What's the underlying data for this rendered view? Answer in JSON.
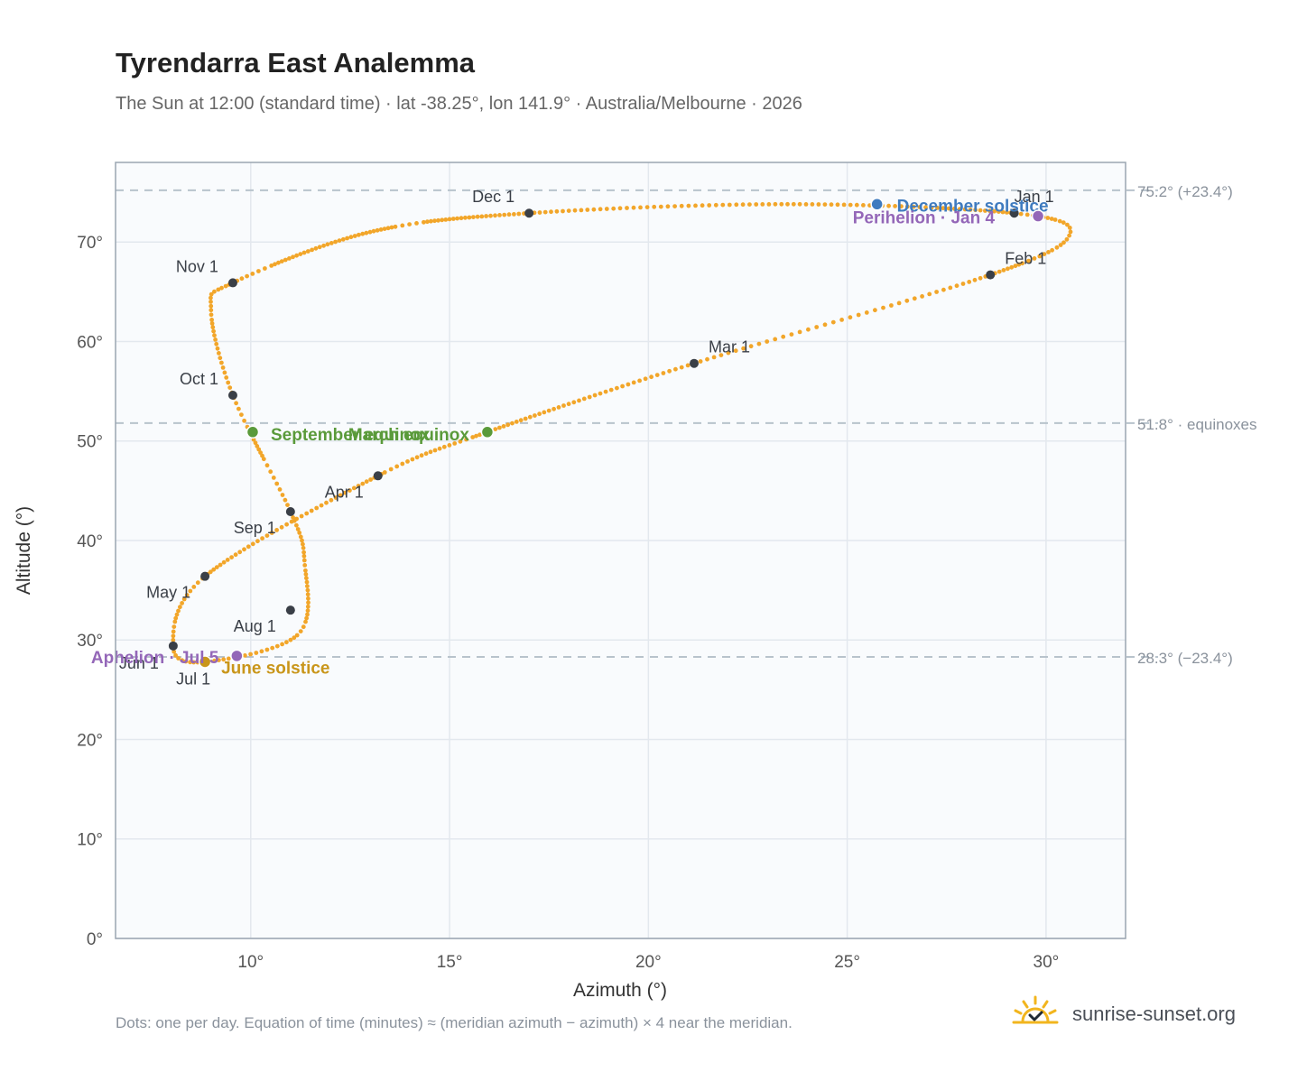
{
  "header": {
    "title": "Tyrendarra East Analemma",
    "subtitle": "The Sun at 12:00 (standard time) · lat -38.25°, lon 141.9° · Australia/Melbourne · 2026"
  },
  "footer": {
    "note": "Dots: one per day. Equation of time (minutes) ≈ (meridian azimuth − azimuth) × 4 near the meridian.",
    "brand": "sunrise-sunset.org",
    "brand_icon": "sun-check-icon"
  },
  "colors": {
    "path": "#f2a62a",
    "month_dot": "#3a3f47",
    "solstice_june": "#c9961a",
    "solstice_december": "#3f7bbf",
    "equinox": "#5a9a3a",
    "apsis": "#9467b8",
    "reference_line": "#b8c3cc",
    "grid": "#e3e8ee",
    "plot_background": "#f9fbfd",
    "frame": "#9aa5b1"
  },
  "chart_data": {
    "type": "scatter",
    "xlabel": "Azimuth (°)",
    "ylabel": "Altitude (°)",
    "xlim": [
      6.6,
      32.0
    ],
    "ylim": [
      0,
      78
    ],
    "xticks": [
      {
        "value": 10,
        "label": "10°"
      },
      {
        "value": 15,
        "label": "15°"
      },
      {
        "value": 20,
        "label": "20°"
      },
      {
        "value": 25,
        "label": "25°"
      },
      {
        "value": 30,
        "label": "30°"
      }
    ],
    "yticks": [
      {
        "value": 0,
        "label": "0°"
      },
      {
        "value": 10,
        "label": "10°"
      },
      {
        "value": 20,
        "label": "20°"
      },
      {
        "value": 30,
        "label": "30°"
      },
      {
        "value": 40,
        "label": "40°"
      },
      {
        "value": 50,
        "label": "50°"
      },
      {
        "value": 60,
        "label": "60°"
      },
      {
        "value": 70,
        "label": "70°"
      }
    ],
    "grid": true,
    "reference_lines": [
      {
        "y": 75.2,
        "label": "75.2° (+23.4°)"
      },
      {
        "y": 51.8,
        "label": "51.8° · equinoxes"
      },
      {
        "y": 28.3,
        "label": "28.3° (−23.4°)"
      }
    ],
    "path_knots": [
      {
        "x": 29.2,
        "y": 72.9
      },
      {
        "x": 30.6,
        "y": 70.8
      },
      {
        "x": 28.6,
        "y": 66.7
      },
      {
        "x": 21.15,
        "y": 57.8
      },
      {
        "x": 15.95,
        "y": 50.9
      },
      {
        "x": 13.2,
        "y": 46.5
      },
      {
        "x": 8.85,
        "y": 36.4
      },
      {
        "x": 8.05,
        "y": 29.4
      },
      {
        "x": 8.85,
        "y": 27.8
      },
      {
        "x": 11.2,
        "y": 30.6
      },
      {
        "x": 11.35,
        "y": 38.0
      },
      {
        "x": 11.0,
        "y": 42.9
      },
      {
        "x": 9.55,
        "y": 54.6
      },
      {
        "x": 9.0,
        "y": 63.3
      },
      {
        "x": 9.55,
        "y": 65.9
      },
      {
        "x": 13.0,
        "y": 71.0
      },
      {
        "x": 17.0,
        "y": 72.9
      },
      {
        "x": 23.5,
        "y": 73.8
      },
      {
        "x": 29.2,
        "y": 72.9
      }
    ],
    "month_markers": [
      {
        "label": "Jan 1",
        "x": 29.2,
        "y": 72.9,
        "anchor": "start",
        "dx": 0,
        "dy": -12
      },
      {
        "label": "Feb 1",
        "x": 28.6,
        "y": 66.7,
        "anchor": "start",
        "dx": 16,
        "dy": -12
      },
      {
        "label": "Mar 1",
        "x": 21.15,
        "y": 57.8,
        "anchor": "start",
        "dx": 16,
        "dy": -12
      },
      {
        "label": "Apr 1",
        "x": 13.2,
        "y": 46.5,
        "anchor": "end",
        "dx": -16,
        "dy": 24
      },
      {
        "label": "May 1",
        "x": 8.85,
        "y": 36.4,
        "anchor": "end",
        "dx": -16,
        "dy": 24
      },
      {
        "label": "Jun 1",
        "x": 8.05,
        "y": 29.4,
        "anchor": "end",
        "dx": -16,
        "dy": 25
      },
      {
        "label": "Jul 1",
        "x": 8.85,
        "y": 27.8,
        "anchor": "middle",
        "dx": -13,
        "dy": 25
      },
      {
        "label": "Aug 1",
        "x": 11.0,
        "y": 33.0,
        "anchor": "end",
        "dx": -16,
        "dy": 24
      },
      {
        "label": "Sep 1",
        "x": 11.0,
        "y": 42.9,
        "anchor": "end",
        "dx": -16,
        "dy": 24
      },
      {
        "label": "Oct 1",
        "x": 9.55,
        "y": 54.6,
        "anchor": "end",
        "dx": -16,
        "dy": -12
      },
      {
        "label": "Nov 1",
        "x": 9.55,
        "y": 65.9,
        "anchor": "end",
        "dx": -16,
        "dy": -12
      },
      {
        "label": "Dec 1",
        "x": 17.0,
        "y": 72.9,
        "anchor": "end",
        "dx": -16,
        "dy": -12
      }
    ],
    "events": [
      {
        "label": "December solstice",
        "x": 25.75,
        "y": 73.8,
        "kind": "solstice_december",
        "anchor": "start",
        "dx": 22,
        "dy": 8
      },
      {
        "label": "Perihelion · Jan 4",
        "x": 29.8,
        "y": 72.6,
        "kind": "apsis",
        "anchor": "end",
        "dx": -48,
        "dy": 8
      },
      {
        "label": "March equinox",
        "x": 15.95,
        "y": 50.9,
        "kind": "equinox",
        "anchor": "end",
        "dx": -20,
        "dy": 9
      },
      {
        "label": "September equinox",
        "x": 10.05,
        "y": 50.9,
        "kind": "equinox",
        "anchor": "start",
        "dx": 20,
        "dy": 9
      },
      {
        "label": "June solstice",
        "x": 8.85,
        "y": 27.8,
        "kind": "solstice_june",
        "anchor": "start",
        "dx": 18,
        "dy": 13
      },
      {
        "label": "Aphelion · Jul 5",
        "x": 9.65,
        "y": 28.4,
        "kind": "apsis",
        "anchor": "end",
        "dx": -20,
        "dy": 8
      }
    ]
  }
}
